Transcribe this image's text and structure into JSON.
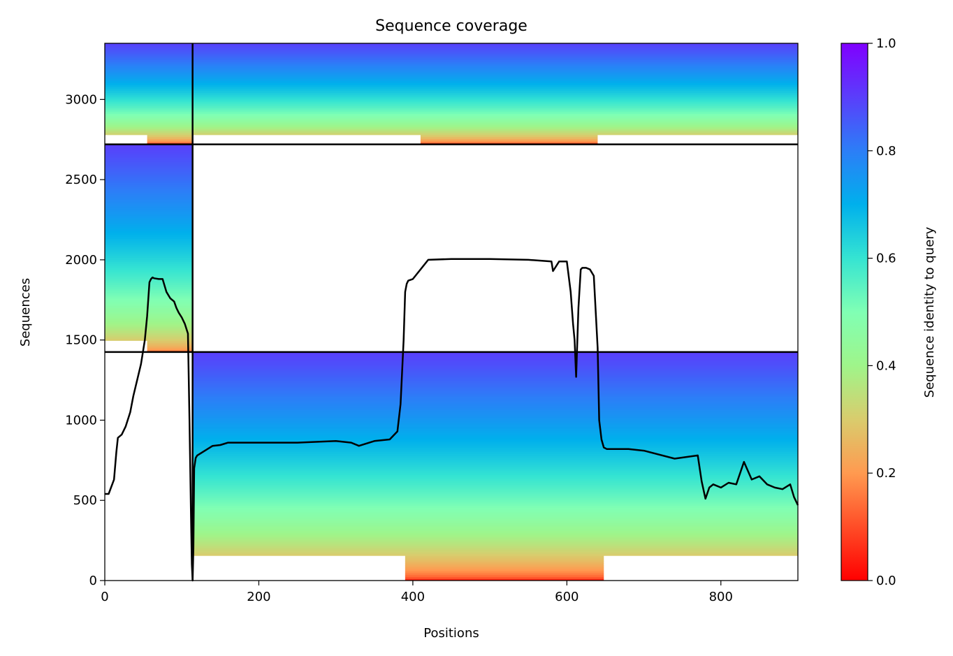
{
  "chart_data": {
    "type": "heatmap",
    "title": "Sequence coverage",
    "xlabel": "Positions",
    "ylabel": "Sequences",
    "xlim": [
      0,
      900
    ],
    "ylim": [
      0,
      3350
    ],
    "xticks": [
      0,
      200,
      400,
      600,
      800
    ],
    "yticks": [
      0,
      500,
      1000,
      1500,
      2000,
      2500,
      3000
    ],
    "colorbar": {
      "label": "Sequence identity to query",
      "range": [
        0.0,
        1.0
      ],
      "ticks": [
        0.0,
        0.2,
        0.4,
        0.6,
        0.8,
        1.0
      ],
      "colormap": "rainbow_r"
    },
    "grid": false,
    "divider_lines": {
      "vertical_x": 114,
      "horizontal_y": [
        1425,
        2720
      ]
    },
    "blocks": [
      {
        "name": "top block",
        "y_range": [
          2720,
          3350
        ],
        "col_ranges": [
          [
            0,
            114
          ],
          [
            114,
            900
          ]
        ],
        "identity_range": [
          0.1,
          0.9
        ],
        "low_identity_cols": [
          [
            55,
            114
          ],
          [
            410,
            640
          ]
        ]
      },
      {
        "name": "middle block",
        "y_range": [
          1425,
          2720
        ],
        "col_ranges": [
          [
            0,
            114
          ]
        ],
        "identity_range": [
          0.15,
          0.9
        ],
        "low_identity_cols": [
          [
            55,
            114
          ]
        ]
      },
      {
        "name": "bottom block",
        "y_range": [
          0,
          1425
        ],
        "col_ranges": [
          [
            114,
            900
          ]
        ],
        "identity_range": [
          0.05,
          0.9
        ],
        "low_identity_cols": [
          [
            390,
            648
          ]
        ]
      }
    ],
    "coverage_line": {
      "name": "coverage",
      "color": "#000000",
      "x": [
        0,
        5,
        12,
        15,
        17,
        22,
        27,
        33,
        37,
        42,
        47,
        52,
        55,
        58,
        60,
        62,
        64,
        70,
        75,
        80,
        85,
        90,
        93,
        96,
        100,
        104,
        108,
        110,
        112,
        113,
        114,
        115,
        116,
        118,
        120,
        130,
        140,
        150,
        160,
        200,
        250,
        300,
        320,
        330,
        350,
        370,
        380,
        384,
        386,
        388,
        390,
        392,
        394,
        400,
        420,
        450,
        500,
        550,
        580,
        582,
        590,
        600,
        605,
        608,
        610,
        612,
        615,
        618,
        620,
        625,
        630,
        635,
        640,
        642,
        645,
        648,
        652,
        660,
        680,
        700,
        740,
        770,
        775,
        780,
        785,
        790,
        800,
        810,
        820,
        830,
        840,
        850,
        860,
        870,
        880,
        890,
        895,
        900
      ],
      "y": [
        540,
        540,
        630,
        800,
        890,
        910,
        960,
        1050,
        1150,
        1250,
        1350,
        1500,
        1650,
        1860,
        1880,
        1890,
        1885,
        1880,
        1880,
        1800,
        1760,
        1740,
        1700,
        1670,
        1640,
        1600,
        1540,
        1000,
        400,
        100,
        0,
        200,
        700,
        765,
        780,
        810,
        840,
        845,
        860,
        860,
        860,
        870,
        860,
        840,
        870,
        880,
        930,
        1100,
        1300,
        1500,
        1800,
        1850,
        1870,
        1880,
        2000,
        2005,
        2005,
        2000,
        1990,
        1930,
        1990,
        1990,
        1800,
        1600,
        1500,
        1270,
        1700,
        1940,
        1950,
        1950,
        1940,
        1900,
        1450,
        1000,
        880,
        830,
        820,
        820,
        820,
        810,
        760,
        780,
        620,
        510,
        580,
        600,
        580,
        610,
        600,
        740,
        630,
        650,
        600,
        580,
        570,
        600,
        520,
        470
      ]
    }
  }
}
